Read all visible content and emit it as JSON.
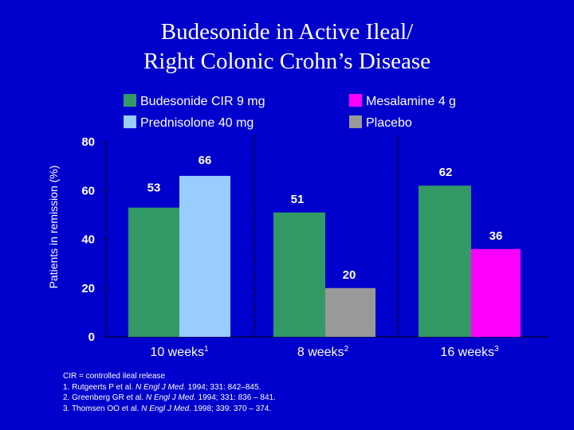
{
  "title_lines": [
    "Budesonide in Active Ileal/",
    "Right Colonic Crohn’s Disease"
  ],
  "chart_data": {
    "type": "bar",
    "title": "Budesonide in Active Ileal/ Right Colonic Crohn’s Disease",
    "ylabel": "Patients in remission (%)",
    "ylim": [
      0,
      80
    ],
    "yticks": [
      0,
      20,
      40,
      60,
      80
    ],
    "grid": false,
    "legend_placement": "top",
    "groups": [
      {
        "label": "10 weeks",
        "sup": "1",
        "bars": [
          {
            "series": "Budesonide CIR 9 mg",
            "value": 53
          },
          {
            "series": "Prednisolone 40 mg",
            "value": 66
          }
        ]
      },
      {
        "label": "8 weeks",
        "sup": "2",
        "bars": [
          {
            "series": "Budesonide CIR 9 mg",
            "value": 51
          },
          {
            "series": "Placebo",
            "value": 20
          }
        ]
      },
      {
        "label": "16 weeks",
        "sup": "3",
        "bars": [
          {
            "series": "Budesonide CIR 9 mg",
            "value": 62
          },
          {
            "series": "Mesalamine 4 g",
            "value": 36
          }
        ]
      }
    ],
    "series": [
      {
        "name": "Budesonide CIR 9 mg",
        "color": "#339966"
      },
      {
        "name": "Prednisolone 40 mg",
        "color": "#99ccff"
      },
      {
        "name": "Mesalamine 4 g",
        "color": "#ff00ff"
      },
      {
        "name": "Placebo",
        "color": "#999999"
      }
    ]
  },
  "legend": {
    "budesonide": "Budesonide CIR 9 mg",
    "prednisolone": "Prednisolone 40 mg",
    "mesalamine": "Mesalamine 4 g",
    "placebo": "Placebo"
  },
  "colors": {
    "background": "#0000cc",
    "budesonide": "#339966",
    "prednisolone": "#99ccff",
    "mesalamine": "#ff00ff",
    "placebo": "#999999"
  },
  "footnotes": {
    "cir": "CIR = controlled ileal release",
    "ref1": {
      "prefix": "1. Rutgeerts P et al. ",
      "journal": "N Engl J Med.",
      "suffix": " 1994; 331: 842–845."
    },
    "ref2": {
      "prefix": "2. Greenberg GR et al. ",
      "journal": "N Engl J Med.",
      "suffix": " 1994; 331: 836 – 841."
    },
    "ref3": {
      "prefix": "3. Thomsen OO et al. ",
      "journal": "N Engl J Med.",
      "suffix": " 1998; 339: 370 – 374."
    }
  }
}
